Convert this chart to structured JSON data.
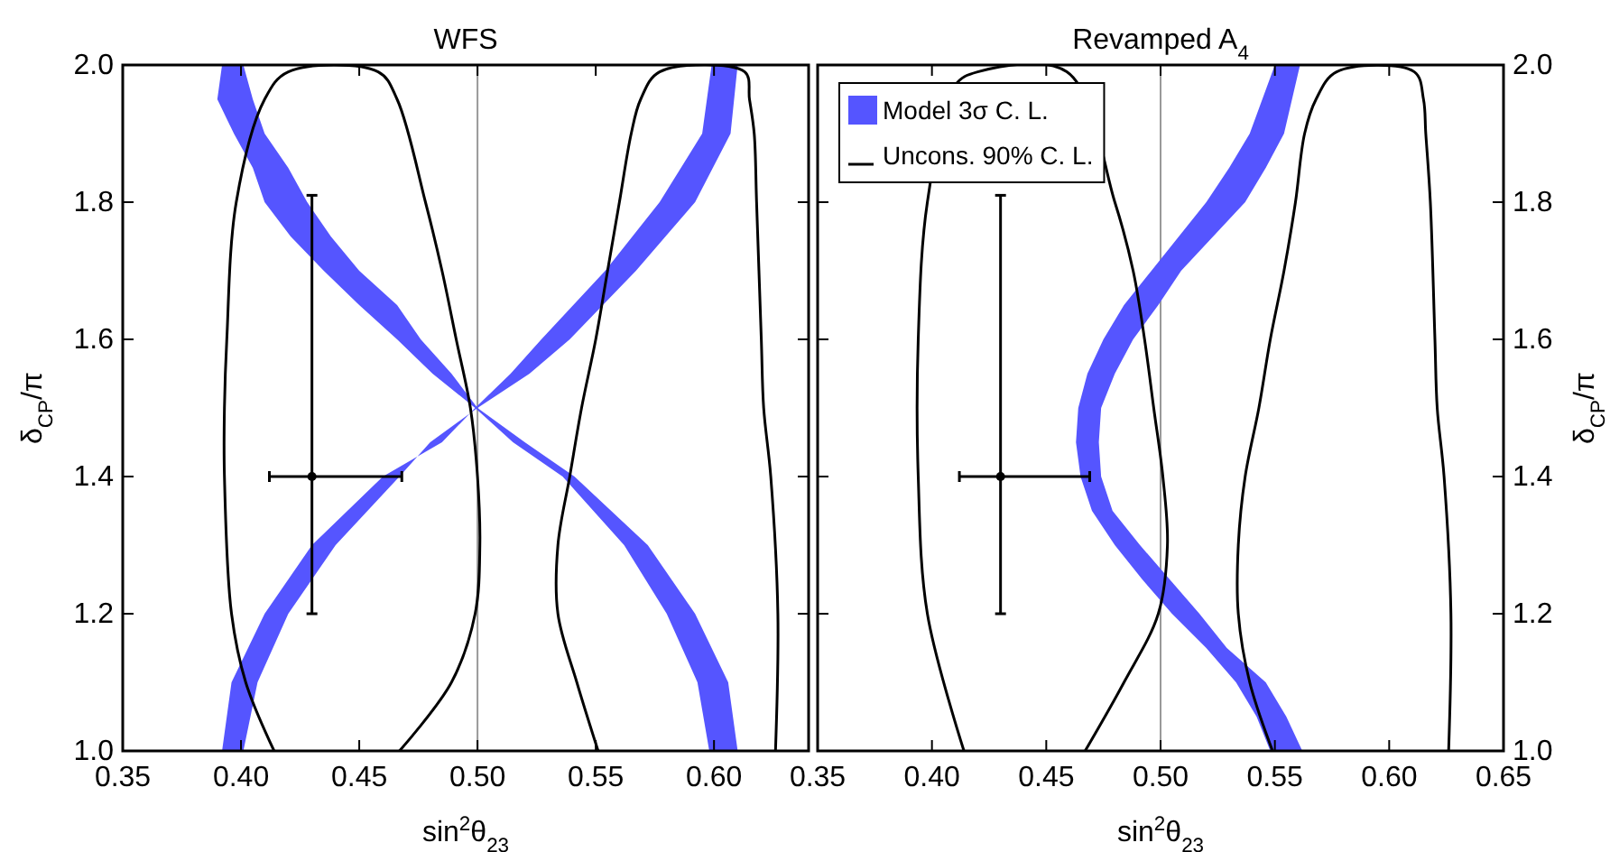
{
  "chart_data": [
    {
      "type": "line",
      "title": "WFS",
      "xlabel": "sin$^{2}$θ$_{23}$",
      "ylabel": "δ$_{CP}$/π",
      "xlim": [
        0.35,
        0.64
      ],
      "ylim": [
        1.0,
        2.0
      ],
      "xticks": [
        {
          "value": 0.35,
          "label": "0.35"
        },
        {
          "value": 0.4,
          "label": "0.40"
        },
        {
          "value": 0.45,
          "label": "0.45"
        },
        {
          "value": 0.5,
          "label": "0.50"
        },
        {
          "value": 0.55,
          "label": "0.55"
        },
        {
          "value": 0.6,
          "label": "0.60"
        }
      ],
      "yticks": [
        {
          "value": 1.0,
          "label": "1.0"
        },
        {
          "value": 1.2,
          "label": "1.2"
        },
        {
          "value": 1.4,
          "label": "1.4"
        },
        {
          "value": 1.6,
          "label": "1.6"
        },
        {
          "value": 1.8,
          "label": "1.8"
        },
        {
          "value": 2.0,
          "label": "2.0"
        }
      ],
      "legend": false,
      "ref_lines": [
        {
          "axis": "x",
          "value": 0.5,
          "label": null,
          "color": "#999999"
        }
      ],
      "series": [
        {
          "type": "area",
          "color": "#5555ff",
          "x": [
            0.392,
            0.39,
            0.397,
            0.405,
            0.41,
            0.421,
            0.435,
            0.45,
            0.466,
            0.481,
            0.499,
            0.515,
            0.536,
            0.562,
            0.58,
            0.593,
            0.598,
            0.61,
            0.606,
            0.592,
            0.572,
            0.541,
            0.52,
            0.5,
            0.489,
            0.476,
            0.466,
            0.45,
            0.438,
            0.428,
            0.42,
            0.41,
            0.405,
            0.401
          ],
          "values": [
            2.0,
            1.95,
            1.9,
            1.85,
            1.8,
            1.75,
            1.7,
            1.65,
            1.6,
            1.55,
            1.5,
            1.45,
            1.4,
            1.3,
            1.2,
            1.1,
            1.0,
            1.0,
            1.1,
            1.2,
            1.3,
            1.4,
            1.45,
            1.5,
            1.55,
            1.6,
            1.65,
            1.7,
            1.75,
            1.8,
            1.85,
            1.9,
            1.95,
            2.0
          ]
        },
        {
          "type": "area",
          "color": "#5555ff",
          "x": [
            0.599,
            0.595,
            0.577,
            0.554,
            0.527,
            0.514,
            0.499,
            0.485,
            0.46,
            0.43,
            0.41,
            0.396,
            0.392,
            0.401,
            0.407,
            0.42,
            0.44,
            0.467,
            0.48,
            0.5,
            0.522,
            0.539,
            0.567,
            0.592,
            0.607,
            0.61
          ],
          "values": [
            2.0,
            1.9,
            1.8,
            1.7,
            1.6,
            1.55,
            1.5,
            1.45,
            1.4,
            1.3,
            1.2,
            1.1,
            1.0,
            1.0,
            1.1,
            1.2,
            1.3,
            1.4,
            1.45,
            1.5,
            1.55,
            1.6,
            1.7,
            1.8,
            1.9,
            2.0
          ]
        },
        {
          "color": "#000000",
          "x": [
            0.414,
            0.402,
            0.396,
            0.393,
            0.393,
            0.394,
            0.398,
            0.41,
            0.42,
            0.458,
            0.466,
            0.478,
            0.485,
            0.491,
            0.497,
            0.5,
            0.501,
            0.499,
            0.489,
            0.467
          ],
          "values": [
            1.0,
            1.1,
            1.2,
            1.4,
            1.5,
            1.6,
            1.8,
            1.95,
            1.99,
            1.99,
            1.95,
            1.8,
            1.7,
            1.6,
            1.5,
            1.4,
            1.3,
            1.2,
            1.1,
            1.0
          ]
        },
        {
          "color": "#000000",
          "x": [
            0.551,
            0.542,
            0.534,
            0.534,
            0.539,
            0.544,
            0.55,
            0.555,
            0.56,
            0.565,
            0.569,
            0.577,
            0.613,
            0.615,
            0.617,
            0.618,
            0.62,
            0.621,
            0.624,
            0.627,
            0.626
          ],
          "values": [
            1.0,
            1.1,
            1.2,
            1.3,
            1.4,
            1.5,
            1.6,
            1.7,
            1.8,
            1.9,
            1.95,
            1.99,
            1.99,
            1.95,
            1.9,
            1.8,
            1.6,
            1.5,
            1.4,
            1.2,
            1.0
          ]
        },
        {
          "type": "scatter",
          "color": "#000000",
          "marker": "circle",
          "x": [
            0.43
          ],
          "values": [
            1.4
          ],
          "xerrors": [
            [
              0.412,
              0.468
            ]
          ],
          "errors": [
            [
              1.2,
              1.81
            ]
          ]
        }
      ]
    },
    {
      "type": "line",
      "title": "Revamped A$_{4}$",
      "xlabel": "sin$^{2}$θ$_{23}$",
      "ylabel": "δ$_{CP}$/π",
      "xlim": [
        0.35,
        0.65
      ],
      "ylim": [
        1.0,
        2.0
      ],
      "xticks": [
        {
          "value": 0.35,
          "label": "0.35"
        },
        {
          "value": 0.4,
          "label": "0.40"
        },
        {
          "value": 0.45,
          "label": "0.45"
        },
        {
          "value": 0.5,
          "label": "0.50"
        },
        {
          "value": 0.55,
          "label": "0.55"
        },
        {
          "value": 0.6,
          "label": "0.60"
        },
        {
          "value": 0.65,
          "label": "0.65"
        }
      ],
      "yticks": [
        {
          "value": 1.0,
          "label": "1.0"
        },
        {
          "value": 1.2,
          "label": "1.2"
        },
        {
          "value": 1.4,
          "label": "1.4"
        },
        {
          "value": 1.6,
          "label": "1.6"
        },
        {
          "value": 1.8,
          "label": "1.8"
        },
        {
          "value": 2.0,
          "label": "2.0"
        }
      ],
      "legend": "top left",
      "ref_lines": [
        {
          "axis": "x",
          "value": 0.5,
          "label": null,
          "color": "#999999"
        }
      ],
      "series": [
        {
          "type": "area",
          "name": "Model 3σ C. L.",
          "color": "#5555ff",
          "x": [
            0.55,
            0.539,
            0.53,
            0.52,
            0.496,
            0.484,
            0.475,
            0.468,
            0.464,
            0.463,
            0.465,
            0.47,
            0.48,
            0.492,
            0.505,
            0.52,
            0.533,
            0.542,
            0.548,
            0.562,
            0.555,
            0.546,
            0.529,
            0.517,
            0.504,
            0.491,
            0.479,
            0.474,
            0.473,
            0.474,
            0.48,
            0.488,
            0.499,
            0.509,
            0.537,
            0.546,
            0.554,
            0.561
          ],
          "values": [
            2.0,
            1.9,
            1.85,
            1.8,
            1.7,
            1.65,
            1.6,
            1.55,
            1.5,
            1.45,
            1.4,
            1.35,
            1.3,
            1.25,
            1.2,
            1.15,
            1.1,
            1.05,
            1.0,
            1.0,
            1.05,
            1.1,
            1.15,
            1.2,
            1.25,
            1.3,
            1.35,
            1.4,
            1.45,
            1.5,
            1.55,
            1.6,
            1.65,
            1.7,
            1.8,
            1.85,
            1.9,
            2.0
          ]
        },
        {
          "name": "Uncons. 90% C. L.",
          "color": "#000000",
          "x": [
            0.414,
            0.398,
            0.394,
            0.394,
            0.398,
            0.41,
            0.42,
            0.459,
            0.48,
            0.488,
            0.493,
            0.497,
            0.501,
            0.503,
            0.499,
            0.484,
            0.467
          ],
          "values": [
            1.0,
            1.2,
            1.4,
            1.6,
            1.8,
            1.97,
            1.99,
            1.99,
            1.8,
            1.7,
            1.6,
            1.5,
            1.4,
            1.3,
            1.2,
            1.1,
            1.0
          ]
        },
        {
          "color": "#000000",
          "x": [
            0.549,
            0.539,
            0.534,
            0.534,
            0.537,
            0.543,
            0.548,
            0.554,
            0.559,
            0.563,
            0.568,
            0.577,
            0.611,
            0.615,
            0.616,
            0.618,
            0.62,
            0.621,
            0.624,
            0.627,
            0.626
          ],
          "values": [
            1.0,
            1.1,
            1.2,
            1.3,
            1.4,
            1.5,
            1.6,
            1.7,
            1.8,
            1.9,
            1.95,
            1.99,
            1.99,
            1.95,
            1.9,
            1.8,
            1.6,
            1.5,
            1.4,
            1.2,
            1.0
          ]
        },
        {
          "type": "scatter",
          "color": "#000000",
          "marker": "circle",
          "x": [
            0.43
          ],
          "values": [
            1.4
          ],
          "xerrors": [
            [
              0.412,
              0.469
            ]
          ],
          "errors": [
            [
              1.2,
              1.81
            ]
          ]
        }
      ]
    }
  ]
}
